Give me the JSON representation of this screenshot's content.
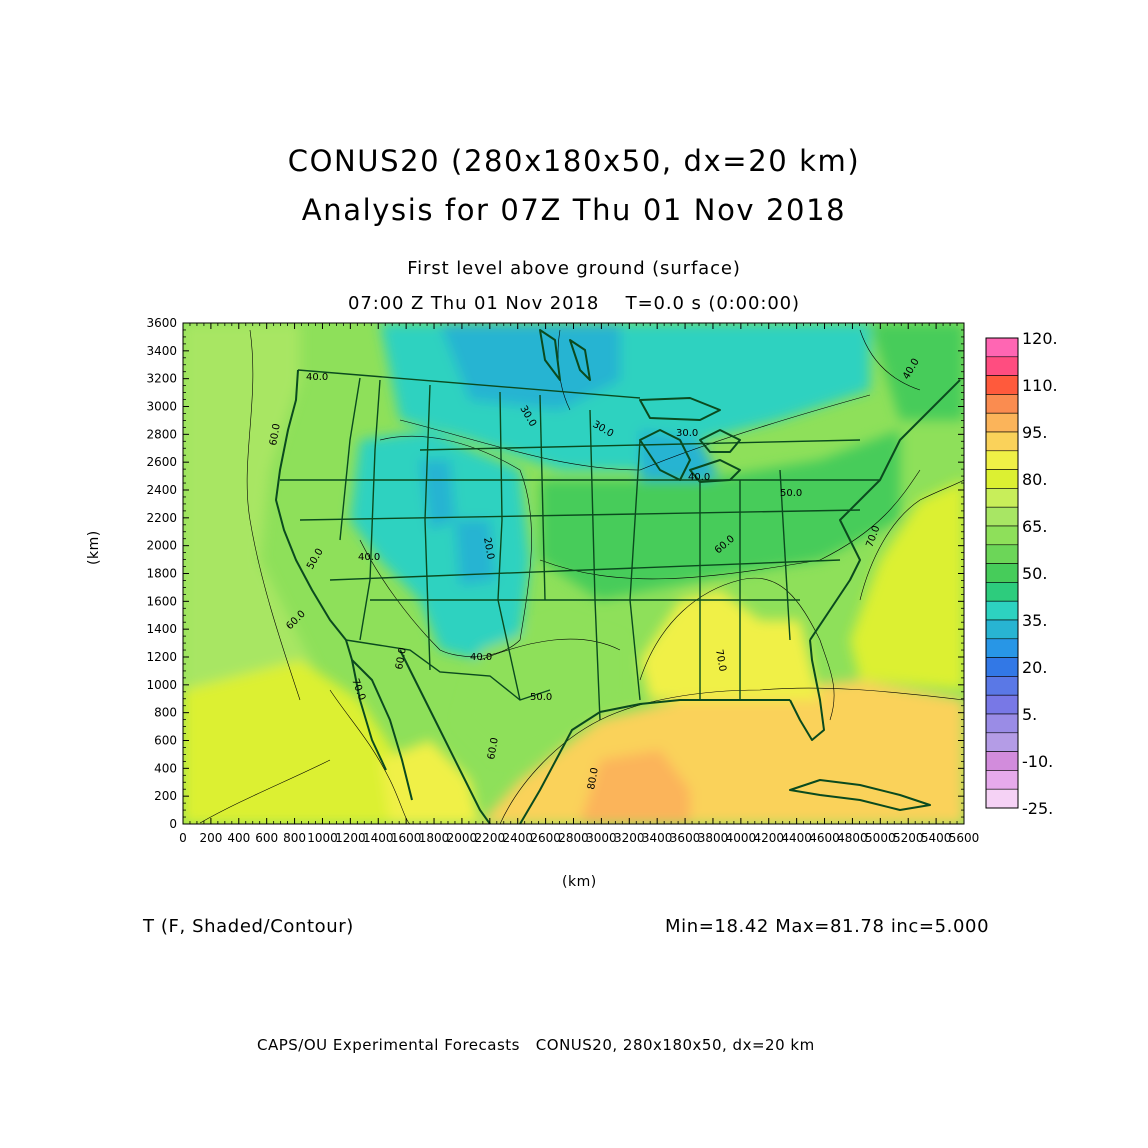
{
  "header": {
    "title_line1": "CONUS20 (280x180x50, dx=20 km)",
    "title_line2": "Analysis for 07Z Thu 01 Nov 2018",
    "level": "First level above ground (surface)",
    "time": "07:00 Z Thu 01 Nov 2018    T=0.0 s (0:00:00)"
  },
  "axes": {
    "x_label": "(km)",
    "y_label": "(km)",
    "x_ticks": [
      "0",
      "200",
      "400",
      "600",
      "800",
      "1000",
      "1200",
      "1400",
      "1600",
      "1800",
      "2000",
      "2200",
      "2400",
      "2600",
      "2800",
      "3000",
      "3200",
      "3400",
      "3600",
      "3800",
      "4000",
      "4200",
      "4400",
      "4600",
      "4800",
      "5000",
      "5200",
      "5400",
      "5600"
    ],
    "y_ticks": [
      "0",
      "200",
      "400",
      "600",
      "800",
      "1000",
      "1200",
      "1400",
      "1600",
      "1800",
      "2000",
      "2200",
      "2400",
      "2600",
      "2800",
      "3000",
      "3200",
      "3400",
      "3600"
    ],
    "x_range": [
      0,
      5600
    ],
    "y_range": [
      0,
      3600
    ]
  },
  "colorbar": {
    "labels": [
      "120.",
      "110.",
      "95.",
      "80.",
      "65.",
      "50.",
      "35.",
      "20.",
      "5.",
      "-10.",
      "-25."
    ],
    "colors": [
      "#ff66b3",
      "#ff4d80",
      "#ff5a3c",
      "#fa8c50",
      "#fbb45a",
      "#fad25a",
      "#f0f046",
      "#dcf032",
      "#c8ee5a",
      "#a8e664",
      "#8ee05a",
      "#6cd658",
      "#46cc5a",
      "#2dcc7d",
      "#2dd2c0",
      "#28b4d2",
      "#2896e6",
      "#3278e6",
      "#5a78e6",
      "#7878e6",
      "#9a8ce6",
      "#b49ce6",
      "#d28cdc",
      "#e6aaec",
      "#f5d2f5"
    ]
  },
  "contour_labels": [
    "30.0",
    "30.0",
    "30.0",
    "40.0",
    "40.0",
    "40.0",
    "40.0",
    "40.0",
    "50.0",
    "50.0",
    "50.0",
    "60.0",
    "60.0",
    "60.0",
    "60.0",
    "60.0",
    "70.0",
    "70.0",
    "70.0",
    "80.0",
    "20.0"
  ],
  "field": {
    "variable": "T (F, Shaded/Contour)",
    "stats": "Min=18.42 Max=81.78 inc=5.000"
  },
  "footer": "CAPS/OU Experimental Forecasts   CONUS20, 280x180x50, dx=20 km"
}
